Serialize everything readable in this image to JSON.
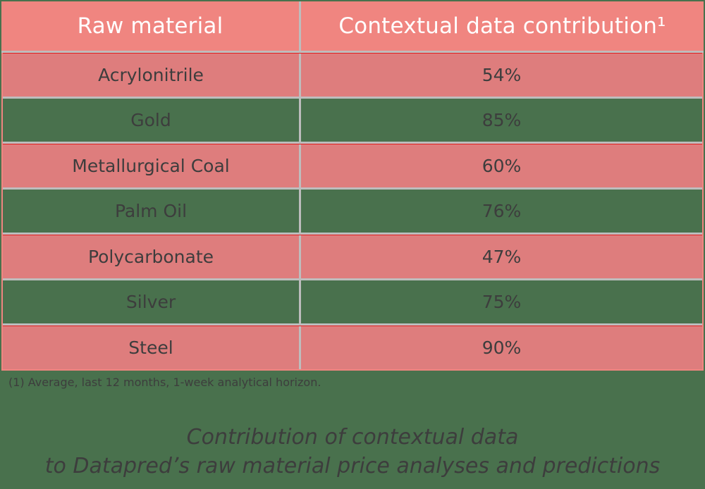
{
  "table": {
    "headers": [
      "Raw material",
      "Contextual data contribution¹"
    ],
    "rows": [
      {
        "material": "Acrylonitrile",
        "contribution": "54%",
        "style": "pink"
      },
      {
        "material": "Gold",
        "contribution": "85%",
        "style": "green"
      },
      {
        "material": "Metallurgical Coal",
        "contribution": "60%",
        "style": "pink"
      },
      {
        "material": "Palm Oil",
        "contribution": "76%",
        "style": "green"
      },
      {
        "material": "Polycarbonate",
        "contribution": "47%",
        "style": "pink"
      },
      {
        "material": "Silver",
        "contribution": "75%",
        "style": "green"
      },
      {
        "material": "Steel",
        "contribution": "90%",
        "style": "pink"
      }
    ]
  },
  "footnote": "(1) Average, last 12 months, 1-week analytical horizon.",
  "caption": {
    "line1": "Contribution of contextual data",
    "line2": "to Datapred’s raw material price analyses and predictions"
  },
  "colors": {
    "header_bg": "#f08580",
    "pink_row": "#de7d7d",
    "green_row": "#49714d",
    "grid": "#bdbdbd",
    "text_dark": "#3d3d3d"
  }
}
